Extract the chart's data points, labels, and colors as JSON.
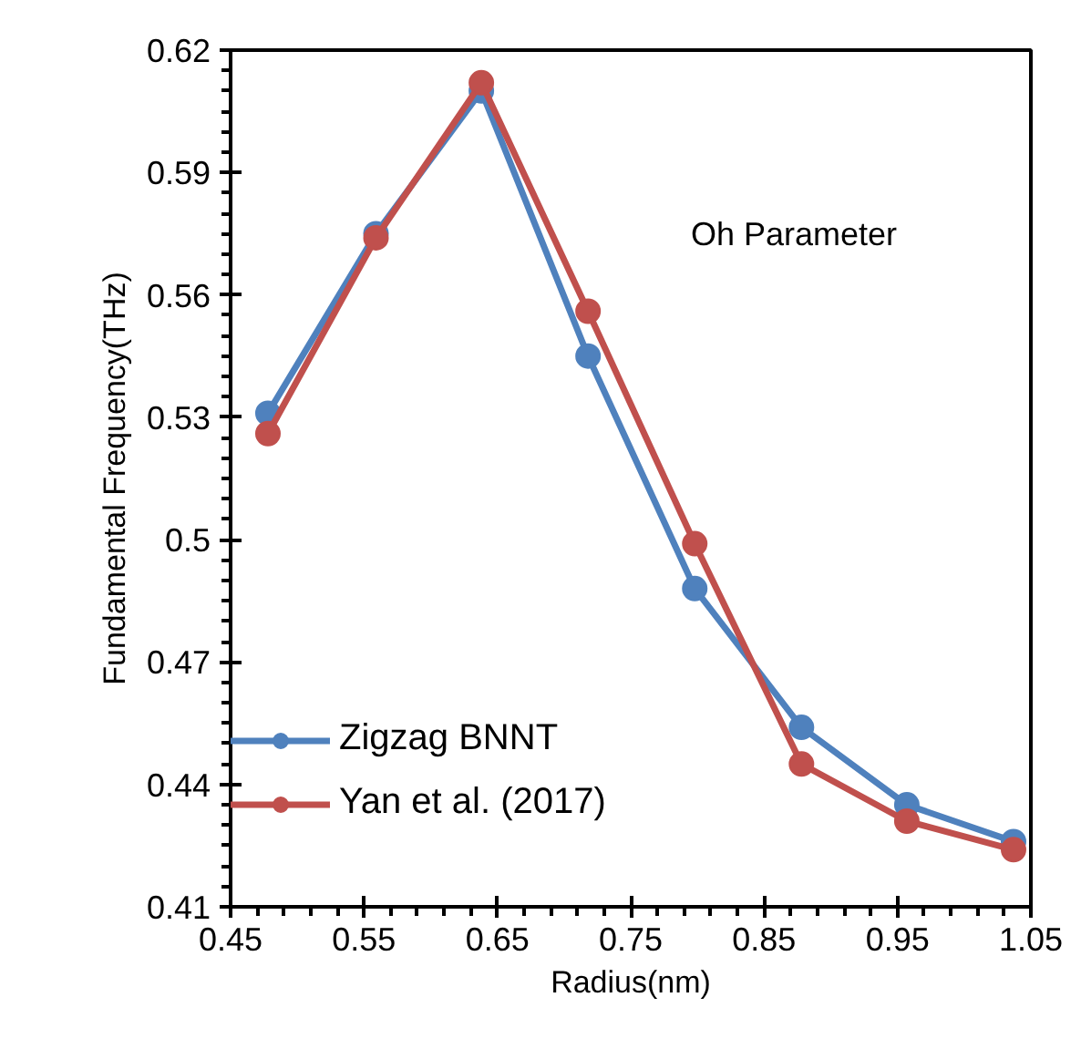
{
  "chart_data": {
    "type": "line",
    "xlabel": "Radius(nm)",
    "ylabel": "Fundamental Frequency(THz)",
    "x": [
      0.478,
      0.559,
      0.638,
      0.718,
      0.798,
      0.878,
      0.957,
      1.037
    ],
    "series": [
      {
        "name": "Zigzag BNNT",
        "color": "#4f81bd",
        "values": [
          0.531,
          0.575,
          0.61,
          0.545,
          0.488,
          0.454,
          0.435,
          0.426
        ]
      },
      {
        "name": "Yan et al. (2017)",
        "color": "#c0504d",
        "values": [
          0.526,
          0.574,
          0.612,
          0.556,
          0.499,
          0.445,
          0.431,
          0.424
        ]
      }
    ],
    "xlim": [
      0.45,
      1.05
    ],
    "xticks": [
      0.45,
      0.55,
      0.65,
      0.75,
      0.85,
      0.95,
      1.05
    ],
    "ylim": [
      0.41,
      0.62
    ],
    "yticks": [
      0.41,
      0.44,
      0.47,
      0.5,
      0.53,
      0.56,
      0.59,
      0.62
    ],
    "annotations": [
      "Oh Parameter"
    ],
    "marker": "circle",
    "line_style": "solid",
    "grid": false,
    "legend": "bottom left"
  }
}
